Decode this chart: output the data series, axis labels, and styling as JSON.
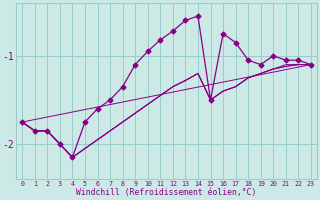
{
  "xlabel": "Windchill (Refroidissement éolien,°C)",
  "bg_color": "#cce9e5",
  "line_color": "#880088",
  "marker": "D",
  "marker_size": 2.5,
  "xlim": [
    -0.5,
    23.5
  ],
  "ylim": [
    -2.4,
    -0.4
  ],
  "xticks": [
    0,
    1,
    2,
    3,
    4,
    5,
    6,
    7,
    8,
    9,
    10,
    11,
    12,
    13,
    14,
    15,
    16,
    17,
    18,
    19,
    20,
    21,
    22,
    23
  ],
  "yticks": [
    -2.0,
    -1.0
  ],
  "grid_color": "#99cccc",
  "main_series": [
    [
      0,
      -1.75
    ],
    [
      1,
      -1.85
    ],
    [
      2,
      -1.85
    ],
    [
      3,
      -2.0
    ],
    [
      4,
      -2.15
    ],
    [
      5,
      -1.75
    ],
    [
      6,
      -1.6
    ],
    [
      7,
      -1.5
    ],
    [
      8,
      -1.35
    ],
    [
      9,
      -1.1
    ],
    [
      10,
      -0.95
    ],
    [
      11,
      -0.82
    ],
    [
      12,
      -0.72
    ],
    [
      13,
      -0.6
    ],
    [
      14,
      -0.55
    ],
    [
      15,
      -1.5
    ],
    [
      16,
      -0.75
    ],
    [
      17,
      -0.85
    ],
    [
      18,
      -1.05
    ],
    [
      19,
      -1.1
    ],
    [
      20,
      -1.0
    ],
    [
      21,
      -1.05
    ],
    [
      22,
      -1.05
    ],
    [
      23,
      -1.1
    ]
  ],
  "extra_series": [
    [
      [
        0,
        -1.75
      ],
      [
        23,
        -1.1
      ]
    ],
    [
      [
        0,
        -1.75
      ],
      [
        1,
        -1.85
      ],
      [
        2,
        -1.85
      ],
      [
        3,
        -2.0
      ],
      [
        4,
        -2.15
      ],
      [
        5,
        -2.05
      ],
      [
        6,
        -1.95
      ],
      [
        7,
        -1.85
      ],
      [
        8,
        -1.75
      ],
      [
        9,
        -1.65
      ],
      [
        10,
        -1.55
      ],
      [
        11,
        -1.45
      ],
      [
        12,
        -1.35
      ],
      [
        13,
        -1.28
      ],
      [
        14,
        -1.2
      ],
      [
        15,
        -1.5
      ],
      [
        16,
        -1.4
      ],
      [
        17,
        -1.35
      ],
      [
        18,
        -1.25
      ],
      [
        19,
        -1.2
      ],
      [
        20,
        -1.15
      ],
      [
        21,
        -1.12
      ],
      [
        22,
        -1.1
      ],
      [
        23,
        -1.1
      ]
    ],
    [
      [
        0,
        -1.75
      ],
      [
        1,
        -1.85
      ],
      [
        2,
        -1.85
      ],
      [
        3,
        -2.0
      ],
      [
        4,
        -2.15
      ],
      [
        5,
        -2.05
      ],
      [
        6,
        -1.95
      ],
      [
        7,
        -1.85
      ],
      [
        8,
        -1.75
      ],
      [
        9,
        -1.65
      ],
      [
        10,
        -1.55
      ],
      [
        11,
        -1.45
      ],
      [
        12,
        -1.35
      ],
      [
        13,
        -1.28
      ],
      [
        14,
        -1.2
      ],
      [
        15,
        -1.5
      ],
      [
        16,
        -1.4
      ],
      [
        17,
        -1.35
      ],
      [
        18,
        -1.25
      ],
      [
        19,
        -1.2
      ],
      [
        20,
        -1.15
      ],
      [
        21,
        -1.12
      ],
      [
        22,
        -1.1
      ],
      [
        23,
        -1.1
      ]
    ],
    [
      [
        0,
        -1.75
      ],
      [
        1,
        -1.85
      ],
      [
        2,
        -1.85
      ],
      [
        3,
        -2.0
      ],
      [
        4,
        -2.15
      ],
      [
        5,
        -2.05
      ],
      [
        6,
        -1.95
      ],
      [
        7,
        -1.85
      ],
      [
        8,
        -1.75
      ],
      [
        9,
        -1.65
      ],
      [
        10,
        -1.55
      ],
      [
        11,
        -1.45
      ],
      [
        12,
        -1.35
      ],
      [
        13,
        -1.28
      ],
      [
        14,
        -1.2
      ],
      [
        15,
        -1.5
      ],
      [
        16,
        -1.4
      ],
      [
        17,
        -1.35
      ],
      [
        18,
        -1.25
      ],
      [
        19,
        -1.2
      ],
      [
        20,
        -1.15
      ],
      [
        21,
        -1.1
      ],
      [
        22,
        -1.1
      ],
      [
        23,
        -1.1
      ]
    ]
  ]
}
